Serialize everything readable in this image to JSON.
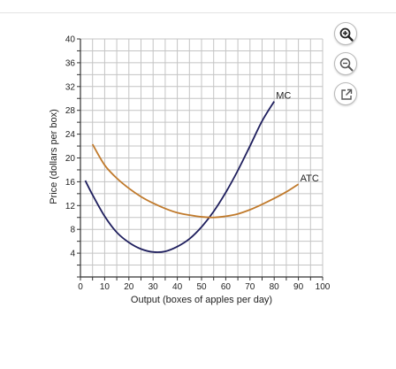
{
  "toolbar": {
    "buttons": [
      {
        "icon": "zoom-in-icon"
      },
      {
        "icon": "zoom-out-icon"
      },
      {
        "icon": "external-link-icon"
      }
    ]
  },
  "chart_data": {
    "type": "line",
    "title": "",
    "xlabel": "Output (boxes of apples per day)",
    "ylabel": "Price (dollars per box)",
    "xlim": [
      0,
      100
    ],
    "ylim": [
      0,
      40
    ],
    "grid": true,
    "minor_step_x": 5,
    "minor_step_y": 2,
    "xticks": [
      0,
      10,
      20,
      30,
      40,
      50,
      60,
      70,
      80,
      90,
      100
    ],
    "yticks": [
      4,
      8,
      12,
      16,
      20,
      24,
      28,
      32,
      36,
      40
    ],
    "series": [
      {
        "name": "MC",
        "color": "#1f1f5e",
        "x": [
          2,
          5,
          10,
          15,
          20,
          25,
          30,
          35,
          40,
          45,
          50,
          55,
          60,
          65,
          70,
          75,
          80
        ],
        "y": [
          16.2,
          13.8,
          10.2,
          7.5,
          5.8,
          4.7,
          4.2,
          4.3,
          5.1,
          6.4,
          8.4,
          11.0,
          14.2,
          17.9,
          22.0,
          26.2,
          29.5
        ]
      },
      {
        "name": "ATC",
        "color": "#c07a2c",
        "x": [
          5,
          10,
          15,
          20,
          25,
          30,
          35,
          40,
          45,
          50,
          55,
          60,
          65,
          70,
          75,
          80,
          85,
          90
        ],
        "y": [
          22.3,
          18.8,
          16.6,
          14.9,
          13.5,
          12.4,
          11.5,
          10.8,
          10.4,
          10.1,
          10.0,
          10.2,
          10.6,
          11.3,
          12.2,
          13.2,
          14.3,
          15.6
        ]
      }
    ]
  }
}
